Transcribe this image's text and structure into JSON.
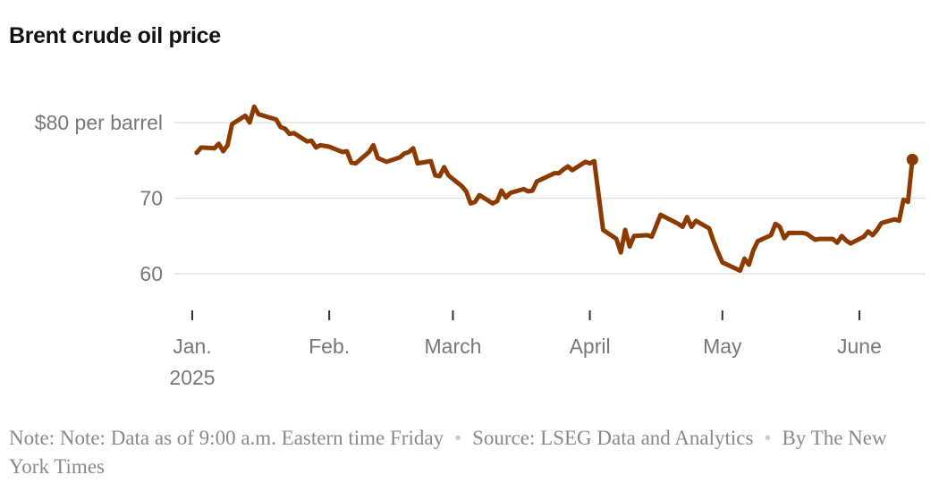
{
  "chart_data": {
    "type": "line",
    "title": "Brent crude oil price",
    "ylim": [
      55,
      85
    ],
    "yticks": [
      {
        "value": 80,
        "label": "$80 per barrel"
      },
      {
        "value": 70,
        "label": "70"
      },
      {
        "value": 60,
        "label": "60"
      }
    ],
    "xticks": [
      {
        "date": "2025-01-01",
        "label": "Jan.",
        "sublabel": "2025"
      },
      {
        "date": "2025-02-01",
        "label": "Feb."
      },
      {
        "date": "2025-03-01",
        "label": "March"
      },
      {
        "date": "2025-04-01",
        "label": "April"
      },
      {
        "date": "2025-05-01",
        "label": "May"
      },
      {
        "date": "2025-06-01",
        "label": "June"
      }
    ],
    "grid": true,
    "line_color": "#8b3a00",
    "series": [
      {
        "x": [
          "2025-01-02",
          "2025-01-03",
          "2025-01-06",
          "2025-01-07",
          "2025-01-08",
          "2025-01-09",
          "2025-01-10",
          "2025-01-13",
          "2025-01-14",
          "2025-01-15",
          "2025-01-16",
          "2025-01-20",
          "2025-01-21",
          "2025-01-22",
          "2025-01-23",
          "2025-01-24",
          "2025-01-27",
          "2025-01-28",
          "2025-01-29",
          "2025-01-30",
          "2025-02-01",
          "2025-02-04",
          "2025-02-05",
          "2025-02-06",
          "2025-02-07",
          "2025-02-10",
          "2025-02-11",
          "2025-02-12",
          "2025-02-14",
          "2025-02-17",
          "2025-02-18",
          "2025-02-19",
          "2025-02-20",
          "2025-02-21",
          "2025-02-24",
          "2025-02-25",
          "2025-02-26",
          "2025-02-27",
          "2025-02-28",
          "2025-03-03",
          "2025-03-04",
          "2025-03-05",
          "2025-03-06",
          "2025-03-07",
          "2025-03-10",
          "2025-03-11",
          "2025-03-12",
          "2025-03-13",
          "2025-03-14",
          "2025-03-17",
          "2025-03-18",
          "2025-03-19",
          "2025-03-20",
          "2025-03-24",
          "2025-03-25",
          "2025-03-26",
          "2025-03-27",
          "2025-03-28",
          "2025-03-31",
          "2025-04-01",
          "2025-04-02",
          "2025-04-04",
          "2025-04-07",
          "2025-04-08",
          "2025-04-09",
          "2025-04-10",
          "2025-04-11",
          "2025-04-14",
          "2025-04-15",
          "2025-04-16",
          "2025-04-17",
          "2025-04-21",
          "2025-04-22",
          "2025-04-23",
          "2025-04-24",
          "2025-04-25",
          "2025-04-28",
          "2025-04-29",
          "2025-04-30",
          "2025-05-01",
          "2025-05-05",
          "2025-05-06",
          "2025-05-07",
          "2025-05-08",
          "2025-05-09",
          "2025-05-12",
          "2025-05-13",
          "2025-05-14",
          "2025-05-15",
          "2025-05-16",
          "2025-05-19",
          "2025-05-20",
          "2025-05-22",
          "2025-05-23",
          "2025-05-26",
          "2025-05-27",
          "2025-05-28",
          "2025-05-29",
          "2025-05-30",
          "2025-06-02",
          "2025-06-03",
          "2025-06-04",
          "2025-06-05",
          "2025-06-06",
          "2025-06-09",
          "2025-06-10",
          "2025-06-11",
          "2025-06-12",
          "2025-06-13"
        ],
        "y": [
          76.0,
          76.7,
          76.6,
          77.2,
          76.2,
          77.0,
          79.8,
          80.9,
          80.0,
          82.1,
          81.1,
          80.4,
          79.4,
          79.2,
          78.5,
          78.6,
          77.5,
          77.6,
          76.7,
          77.0,
          76.8,
          76.1,
          76.2,
          74.7,
          74.6,
          76.1,
          77.0,
          75.3,
          74.8,
          75.4,
          75.9,
          76.1,
          76.6,
          74.6,
          74.9,
          73.0,
          72.9,
          74.1,
          73.0,
          71.6,
          70.9,
          69.3,
          69.5,
          70.4,
          69.3,
          69.6,
          71.0,
          70.1,
          70.7,
          71.2,
          70.9,
          71.0,
          72.2,
          73.3,
          73.3,
          73.8,
          74.2,
          73.7,
          74.8,
          74.6,
          74.9,
          65.8,
          64.6,
          62.8,
          65.8,
          63.6,
          65.0,
          65.1,
          64.9,
          66.3,
          67.8,
          66.6,
          66.2,
          67.5,
          66.2,
          67.0,
          66.0,
          64.3,
          62.8,
          61.5,
          60.4,
          62.0,
          61.2,
          63.1,
          64.3,
          65.1,
          66.6,
          66.2,
          64.7,
          65.4,
          65.4,
          65.3,
          64.5,
          64.6,
          64.6,
          64.1,
          65.0,
          64.4,
          64.0,
          64.9,
          65.6,
          65.1,
          65.8,
          66.7,
          67.2,
          67.0,
          69.8,
          69.5,
          75.1
        ]
      }
    ]
  },
  "footer": {
    "note": "Note: Note: Data as of 9:00 a.m. Eastern time Friday",
    "source": "Source: LSEG Data and Analytics",
    "byline": "By The New York Times"
  }
}
